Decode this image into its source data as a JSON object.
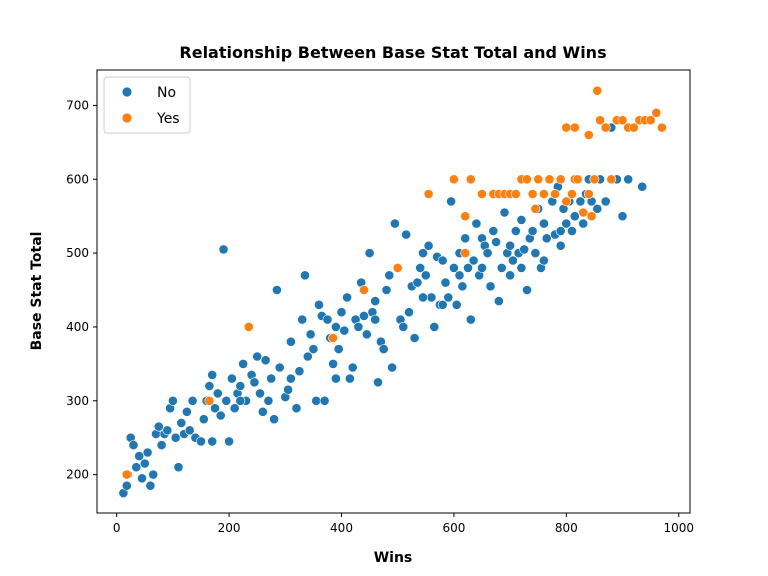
{
  "chart_data": {
    "type": "scatter",
    "title": "Relationship Between Base Stat Total and Wins",
    "xlabel": "Wins",
    "ylabel": "Base Stat Total",
    "xlim": [
      -35,
      1020
    ],
    "ylim": [
      148,
      748
    ],
    "xticks": [
      0,
      200,
      400,
      600,
      800,
      1000
    ],
    "yticks": [
      200,
      300,
      400,
      500,
      600,
      700
    ],
    "grid": false,
    "legend": {
      "placement": "top-left",
      "entries": [
        "No",
        "Yes"
      ]
    },
    "colors": {
      "No": "#1f77b4",
      "Yes": "#ff7f0e"
    },
    "series": [
      {
        "name": "No",
        "points": [
          [
            12,
            175
          ],
          [
            18,
            185
          ],
          [
            20,
            200
          ],
          [
            25,
            250
          ],
          [
            30,
            240
          ],
          [
            35,
            210
          ],
          [
            40,
            225
          ],
          [
            45,
            195
          ],
          [
            50,
            215
          ],
          [
            55,
            230
          ],
          [
            60,
            185
          ],
          [
            65,
            200
          ],
          [
            70,
            255
          ],
          [
            75,
            265
          ],
          [
            80,
            240
          ],
          [
            85,
            255
          ],
          [
            90,
            260
          ],
          [
            95,
            290
          ],
          [
            100,
            300
          ],
          [
            105,
            250
          ],
          [
            110,
            210
          ],
          [
            115,
            270
          ],
          [
            120,
            255
          ],
          [
            125,
            285
          ],
          [
            130,
            260
          ],
          [
            135,
            300
          ],
          [
            140,
            250
          ],
          [
            150,
            245
          ],
          [
            155,
            275
          ],
          [
            160,
            300
          ],
          [
            165,
            320
          ],
          [
            170,
            335
          ],
          [
            175,
            290
          ],
          [
            180,
            310
          ],
          [
            185,
            280
          ],
          [
            190,
            505
          ],
          [
            195,
            300
          ],
          [
            200,
            245
          ],
          [
            205,
            330
          ],
          [
            210,
            290
          ],
          [
            215,
            310
          ],
          [
            220,
            320
          ],
          [
            225,
            350
          ],
          [
            230,
            300
          ],
          [
            240,
            335
          ],
          [
            245,
            325
          ],
          [
            250,
            360
          ],
          [
            255,
            310
          ],
          [
            260,
            285
          ],
          [
            265,
            355
          ],
          [
            270,
            300
          ],
          [
            275,
            330
          ],
          [
            280,
            275
          ],
          [
            285,
            450
          ],
          [
            290,
            345
          ],
          [
            300,
            305
          ],
          [
            305,
            315
          ],
          [
            310,
            380
          ],
          [
            320,
            290
          ],
          [
            325,
            340
          ],
          [
            330,
            410
          ],
          [
            335,
            470
          ],
          [
            340,
            360
          ],
          [
            345,
            390
          ],
          [
            350,
            370
          ],
          [
            355,
            300
          ],
          [
            360,
            430
          ],
          [
            365,
            415
          ],
          [
            370,
            300
          ],
          [
            375,
            410
          ],
          [
            380,
            385
          ],
          [
            385,
            350
          ],
          [
            390,
            400
          ],
          [
            395,
            370
          ],
          [
            400,
            420
          ],
          [
            405,
            395
          ],
          [
            410,
            440
          ],
          [
            415,
            330
          ],
          [
            420,
            345
          ],
          [
            425,
            410
          ],
          [
            430,
            400
          ],
          [
            435,
            460
          ],
          [
            440,
            415
          ],
          [
            445,
            390
          ],
          [
            450,
            500
          ],
          [
            455,
            420
          ],
          [
            460,
            435
          ],
          [
            465,
            325
          ],
          [
            470,
            380
          ],
          [
            475,
            370
          ],
          [
            480,
            450
          ],
          [
            485,
            470
          ],
          [
            490,
            345
          ],
          [
            495,
            540
          ],
          [
            500,
            480
          ],
          [
            505,
            410
          ],
          [
            510,
            400
          ],
          [
            515,
            525
          ],
          [
            520,
            420
          ],
          [
            525,
            455
          ],
          [
            530,
            385
          ],
          [
            535,
            460
          ],
          [
            540,
            480
          ],
          [
            545,
            500
          ],
          [
            550,
            470
          ],
          [
            555,
            510
          ],
          [
            560,
            440
          ],
          [
            565,
            400
          ],
          [
            570,
            495
          ],
          [
            575,
            430
          ],
          [
            580,
            490
          ],
          [
            585,
            460
          ],
          [
            590,
            440
          ],
          [
            595,
            570
          ],
          [
            600,
            480
          ],
          [
            605,
            430
          ],
          [
            610,
            500
          ],
          [
            615,
            455
          ],
          [
            620,
            520
          ],
          [
            625,
            480
          ],
          [
            630,
            410
          ],
          [
            635,
            490
          ],
          [
            640,
            540
          ],
          [
            645,
            470
          ],
          [
            650,
            520
          ],
          [
            655,
            510
          ],
          [
            660,
            500
          ],
          [
            665,
            455
          ],
          [
            670,
            530
          ],
          [
            675,
            515
          ],
          [
            680,
            435
          ],
          [
            685,
            480
          ],
          [
            690,
            555
          ],
          [
            695,
            500
          ],
          [
            700,
            510
          ],
          [
            705,
            490
          ],
          [
            710,
            530
          ],
          [
            715,
            500
          ],
          [
            720,
            480
          ],
          [
            725,
            505
          ],
          [
            730,
            450
          ],
          [
            735,
            520
          ],
          [
            740,
            530
          ],
          [
            745,
            500
          ],
          [
            750,
            560
          ],
          [
            755,
            480
          ],
          [
            760,
            540
          ],
          [
            765,
            520
          ],
          [
            770,
            600
          ],
          [
            775,
            570
          ],
          [
            780,
            525
          ],
          [
            785,
            590
          ],
          [
            790,
            530
          ],
          [
            795,
            560
          ],
          [
            800,
            540
          ],
          [
            805,
            570
          ],
          [
            810,
            530
          ],
          [
            815,
            550
          ],
          [
            820,
            600
          ],
          [
            825,
            570
          ],
          [
            830,
            540
          ],
          [
            835,
            580
          ],
          [
            840,
            600
          ],
          [
            845,
            570
          ],
          [
            850,
            600
          ],
          [
            855,
            560
          ],
          [
            860,
            600
          ],
          [
            870,
            570
          ],
          [
            880,
            670
          ],
          [
            890,
            600
          ],
          [
            900,
            550
          ],
          [
            910,
            600
          ],
          [
            935,
            590
          ],
          [
            170,
            245
          ],
          [
            220,
            300
          ],
          [
            310,
            330
          ],
          [
            390,
            330
          ],
          [
            460,
            410
          ],
          [
            545,
            440
          ],
          [
            580,
            430
          ],
          [
            610,
            470
          ],
          [
            650,
            480
          ],
          [
            700,
            470
          ],
          [
            720,
            545
          ],
          [
            760,
            490
          ],
          [
            790,
            510
          ]
        ]
      },
      {
        "name": "Yes",
        "points": [
          [
            18,
            200
          ],
          [
            165,
            300
          ],
          [
            235,
            400
          ],
          [
            385,
            385
          ],
          [
            440,
            450
          ],
          [
            500,
            480
          ],
          [
            555,
            580
          ],
          [
            600,
            600
          ],
          [
            620,
            550
          ],
          [
            620,
            500
          ],
          [
            630,
            600
          ],
          [
            650,
            580
          ],
          [
            670,
            580
          ],
          [
            680,
            580
          ],
          [
            690,
            580
          ],
          [
            700,
            580
          ],
          [
            710,
            580
          ],
          [
            720,
            600
          ],
          [
            730,
            600
          ],
          [
            740,
            580
          ],
          [
            745,
            560
          ],
          [
            750,
            600
          ],
          [
            760,
            580
          ],
          [
            770,
            600
          ],
          [
            780,
            580
          ],
          [
            790,
            600
          ],
          [
            800,
            570
          ],
          [
            810,
            580
          ],
          [
            815,
            600
          ],
          [
            820,
            600
          ],
          [
            830,
            555
          ],
          [
            840,
            580
          ],
          [
            845,
            550
          ],
          [
            850,
            600
          ],
          [
            855,
            720
          ],
          [
            860,
            680
          ],
          [
            870,
            670
          ],
          [
            880,
            600
          ],
          [
            890,
            680
          ],
          [
            900,
            680
          ],
          [
            910,
            670
          ],
          [
            920,
            670
          ],
          [
            930,
            680
          ],
          [
            940,
            680
          ],
          [
            950,
            680
          ],
          [
            960,
            690
          ],
          [
            970,
            670
          ],
          [
            800,
            670
          ],
          [
            815,
            670
          ],
          [
            840,
            660
          ]
        ]
      }
    ]
  }
}
